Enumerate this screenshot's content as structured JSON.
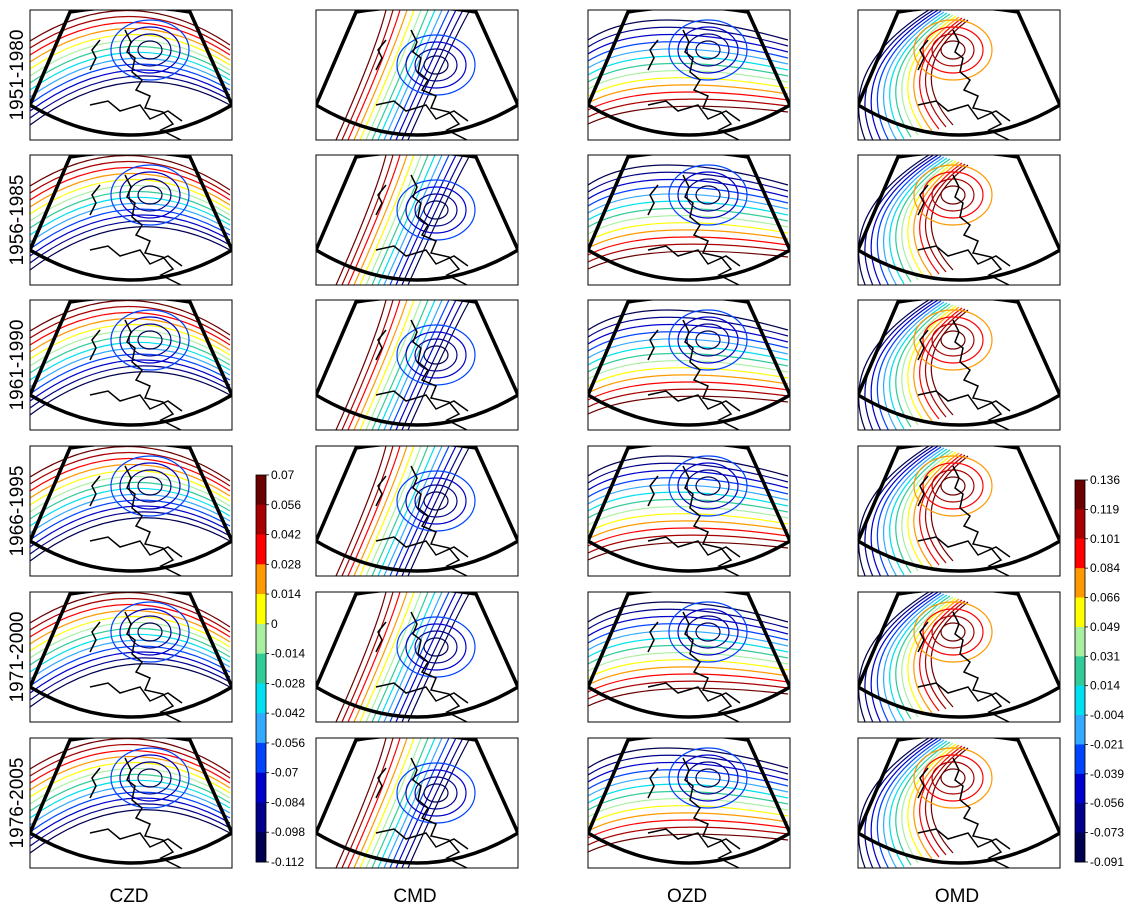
{
  "row_labels": [
    "1951-1980",
    "1956-1985",
    "1961-1990",
    "1966-1995",
    "1971-2000",
    "1976-2005"
  ],
  "column_labels": [
    "CZD",
    "CMD",
    "OZD",
    "OMD"
  ],
  "colorbars": [
    {
      "ticks": [
        0.07,
        0.056,
        0.042,
        0.028,
        0.014,
        0,
        -0.014,
        -0.028,
        -0.042,
        -0.056,
        -0.07,
        -0.084,
        -0.098,
        -0.112
      ],
      "colors": [
        "#6b0000",
        "#a80000",
        "#ff0000",
        "#ff9900",
        "#ffff00",
        "#a8f0a0",
        "#33cc99",
        "#00e0f0",
        "#33aaff",
        "#0044ff",
        "#0000cc",
        "#00008c",
        "#000050"
      ]
    },
    {
      "ticks": [
        0.136,
        0.119,
        0.101,
        0.084,
        0.066,
        0.049,
        0.031,
        0.014,
        -0.004,
        -0.021,
        -0.039,
        -0.056,
        -0.073,
        -0.091
      ],
      "colors": [
        "#6b0000",
        "#a80000",
        "#ff0000",
        "#ff9900",
        "#ffff00",
        "#a8f0a0",
        "#33cc99",
        "#00e0f0",
        "#33aaff",
        "#0044ff",
        "#0000cc",
        "#00008c",
        "#000050"
      ]
    }
  ]
}
